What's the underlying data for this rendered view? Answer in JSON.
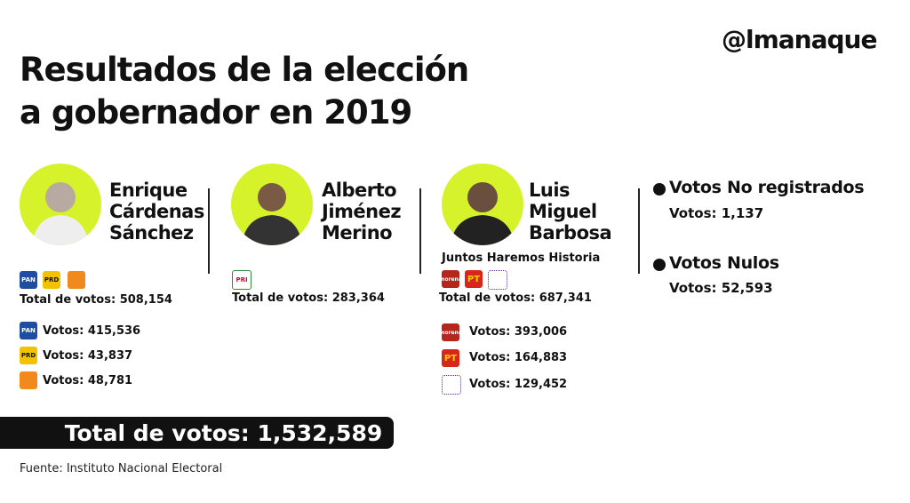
{
  "header": {
    "brand": "@lmanaque",
    "title": [
      "Resultados de la elección",
      "a gobernador en 2019"
    ]
  },
  "candidates": [
    {
      "name": [
        "Enrique",
        "Cárdenas",
        "Sánchez"
      ],
      "total": "Total de votos: 508,154",
      "parties": [
        {
          "logo": "PAN",
          "votes": "Votos: 415,536"
        },
        {
          "logo": "PRD",
          "votes": "Votos: 43,837"
        },
        {
          "logo": null,
          "votes": "Votos: 48,781"
        }
      ]
    },
    {
      "name": [
        "Alberto",
        "Jiménez",
        "Merino"
      ],
      "total": "Total de votos: 283,364",
      "parties": [
        {
          "logo": "PRI",
          "votes": null
        }
      ]
    },
    {
      "name": [
        "Luis",
        "Miguel",
        "Barbosa"
      ],
      "coalition": "Juntos Haremos Historia",
      "total": "Total de votos: 687,341",
      "parties": [
        {
          "logo": "morena",
          "votes": "Votos: 393,006"
        },
        {
          "logo": "PT",
          "votes": "Votos: 164,883"
        },
        {
          "logo": null,
          "votes": "Votos: 129,452"
        }
      ]
    }
  ],
  "other": [
    {
      "label": "Votos No registrados",
      "votes": "Votos: 1,137"
    },
    {
      "label": "Votos Nulos",
      "votes": "Votos: 52,593"
    }
  ],
  "grand_total": "Total de votos: 1,532,589",
  "source": "Fuente: Instituto Nacional Electoral"
}
